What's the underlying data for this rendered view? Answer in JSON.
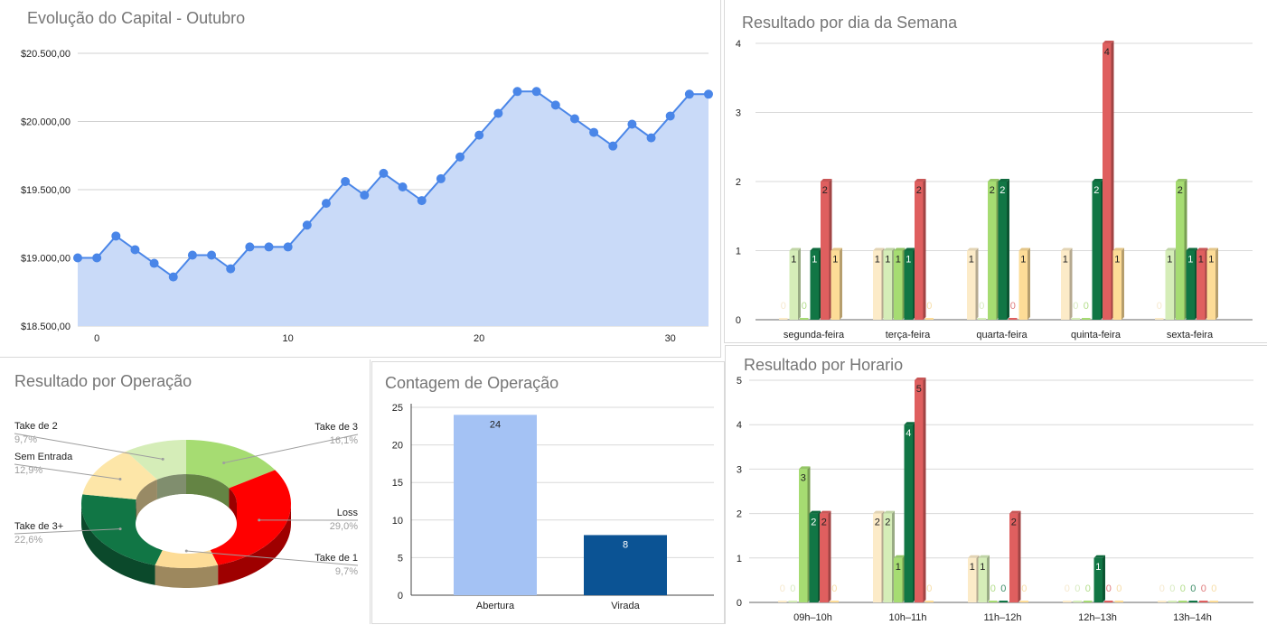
{
  "charts": {
    "capital": {
      "title": "Evolução do Capital - Outubro",
      "y_ticks": [
        "$18.500,00",
        "$19.000,00",
        "$19.500,00",
        "$20.000,00",
        "$20.500,00"
      ],
      "x_ticks": [
        "0",
        "10",
        "20",
        "30"
      ]
    },
    "weekday": {
      "title": "Resultado por dia da Semana",
      "y_ticks": [
        "0",
        "1",
        "2",
        "3",
        "4"
      ],
      "categories": [
        "segunda-feira",
        "terça-feira",
        "quarta-feira",
        "quinta-feira",
        "sexta-feira"
      ]
    },
    "operation": {
      "title": "Resultado por Operação"
    },
    "count": {
      "title": "Contagem de Operação",
      "y_ticks": [
        "0",
        "5",
        "10",
        "15",
        "20",
        "25"
      ],
      "categories": [
        "Abertura",
        "Virada"
      ],
      "value_labels": [
        "24",
        "8"
      ]
    },
    "hour": {
      "title": "Resultado por Horario",
      "y_ticks": [
        "0",
        "1",
        "2",
        "3",
        "4",
        "5"
      ],
      "categories": [
        "09h–10h",
        "10h–11h",
        "11h–12h",
        "12h–13h",
        "13h–14h"
      ]
    }
  },
  "series_colors": [
    "#fcebc8",
    "#d5edb8",
    "#a6dc72",
    "#117645",
    "#df5f5f",
    "#fddc97"
  ],
  "chart_data": [
    {
      "type": "area",
      "title": "Evolução do Capital - Outubro",
      "x": [
        -1,
        0,
        1,
        2,
        3,
        4,
        5,
        6,
        7,
        8,
        9,
        10,
        11,
        12,
        13,
        14,
        15,
        16,
        17,
        18,
        19,
        20,
        21,
        22,
        23,
        24,
        25,
        26,
        27,
        28,
        29,
        30,
        31,
        32
      ],
      "values": [
        19000,
        19000,
        19160,
        19060,
        18960,
        18860,
        19020,
        19020,
        18920,
        19080,
        19080,
        19080,
        19240,
        19400,
        19560,
        19460,
        19620,
        19520,
        19420,
        19580,
        19740,
        19900,
        20060,
        20220,
        20220,
        20120,
        20020,
        19920,
        19820,
        19980,
        19880,
        20040,
        20200,
        20200
      ],
      "ylim": [
        18500,
        20500
      ],
      "xlim": [
        -1,
        32
      ],
      "color": "#4a86e8",
      "fill": "#c9daf8"
    },
    {
      "type": "bar",
      "title": "Resultado por dia da Semana",
      "categories": [
        "segunda-feira",
        "terça-feira",
        "quarta-feira",
        "quinta-feira",
        "sexta-feira"
      ],
      "series": [
        {
          "values": [
            0,
            1,
            1,
            1,
            0
          ]
        },
        {
          "values": [
            1,
            1,
            0,
            0,
            1
          ]
        },
        {
          "values": [
            0,
            1,
            2,
            0,
            2
          ]
        },
        {
          "values": [
            1,
            1,
            2,
            2,
            1
          ]
        },
        {
          "values": [
            2,
            2,
            0,
            4,
            1
          ]
        },
        {
          "values": [
            1,
            0,
            1,
            1,
            1
          ]
        }
      ],
      "ylim": [
        0,
        4
      ]
    },
    {
      "type": "pie",
      "title": "Resultado por Operação",
      "slices": [
        {
          "label": "Take de 3",
          "percent": "16,1%",
          "value": 16.1,
          "color": "#a6dc72"
        },
        {
          "label": "Loss",
          "percent": "29,0%",
          "value": 29.0,
          "color": "#ff0000"
        },
        {
          "label": "Take de 1",
          "percent": "9,7%",
          "value": 9.7,
          "color": "#fddc97"
        },
        {
          "label": "Take de 3+",
          "percent": "22,6%",
          "value": 22.6,
          "color": "#117645"
        },
        {
          "label": "Sem Entrada",
          "percent": "12,9%",
          "value": 12.9,
          "color": "#fde6a8"
        },
        {
          "label": "Take de 2",
          "percent": "9,7%",
          "value": 9.7,
          "color": "#d5edb8"
        }
      ]
    },
    {
      "type": "bar",
      "title": "Contagem de Operação",
      "categories": [
        "Abertura",
        "Virada"
      ],
      "values": [
        24,
        8
      ],
      "colors": [
        "#a4c2f4",
        "#0b5394"
      ],
      "ylim": [
        0,
        25
      ]
    },
    {
      "type": "bar",
      "title": "Resultado por Horario",
      "categories": [
        "09h–10h",
        "10h–11h",
        "11h–12h",
        "12h–13h",
        "13h–14h"
      ],
      "series": [
        {
          "values": [
            0,
            2,
            1,
            0,
            0
          ]
        },
        {
          "values": [
            0,
            2,
            1,
            0,
            0
          ]
        },
        {
          "values": [
            3,
            1,
            0,
            0,
            0
          ]
        },
        {
          "values": [
            2,
            4,
            0,
            1,
            0
          ]
        },
        {
          "values": [
            2,
            5,
            2,
            0,
            0
          ]
        },
        {
          "values": [
            0,
            0,
            0,
            0,
            0
          ]
        }
      ],
      "ylim": [
        0,
        5
      ]
    }
  ]
}
